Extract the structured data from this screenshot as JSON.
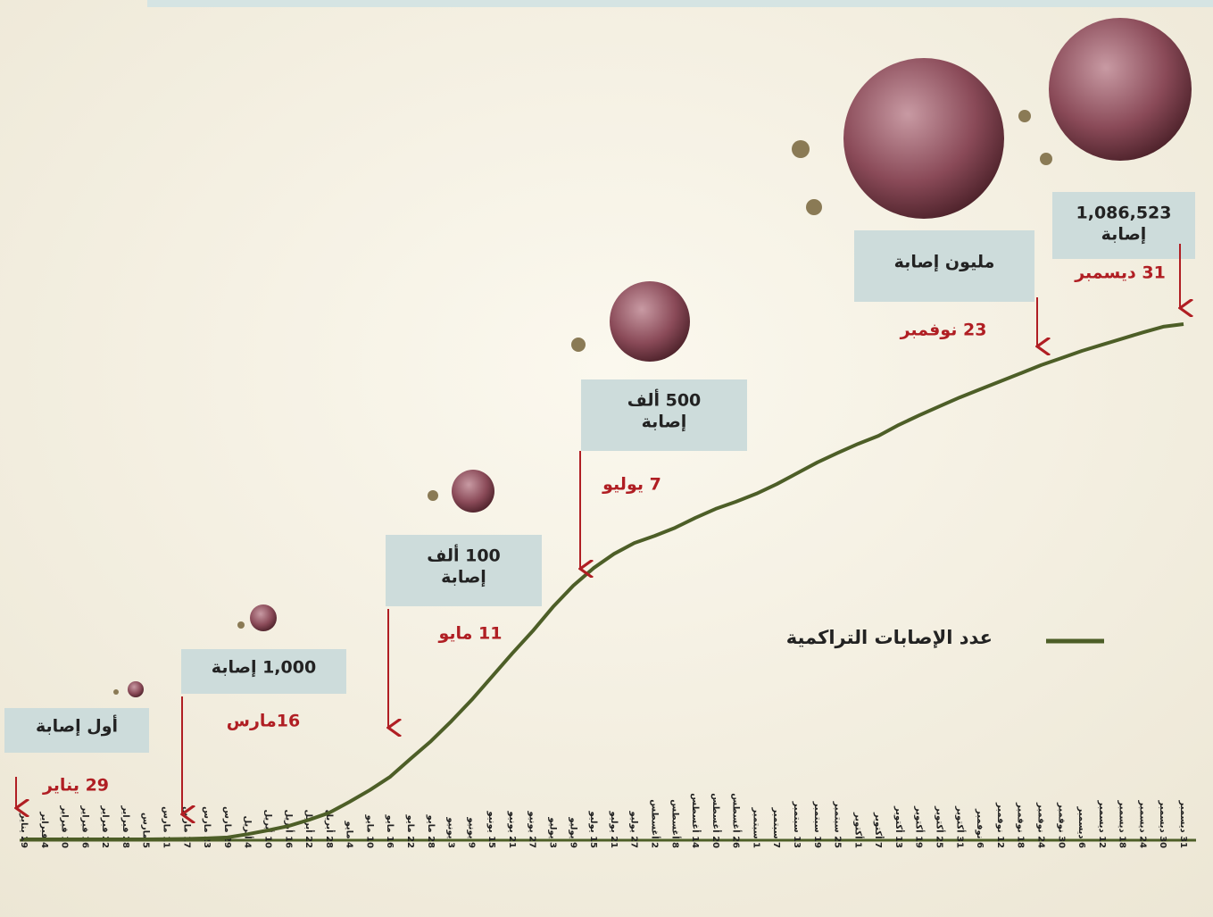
{
  "chart_data": {
    "type": "line",
    "categories": [
      "29 يناير",
      "4 فبراير",
      "10 فبراير",
      "16 فبراير",
      "22 فبراير",
      "28 فبراير",
      "5 مارس",
      "11 مارس",
      "17 مارس",
      "23 مارس",
      "29 مارس",
      "4 أبريل",
      "10 أبريل",
      "16 أبريل",
      "22 أبريل",
      "28 أبريل",
      "4 مايو",
      "10 مايو",
      "16 مايو",
      "22 مايو",
      "28 مايو",
      "3 يونيو",
      "9 يونيو",
      "15 يونيو",
      "21 يونيو",
      "27 يونيو",
      "3 يوليو",
      "9 يوليو",
      "15 يوليو",
      "21 يوليو",
      "27 يوليو",
      "2 أغسطس",
      "8 أغسطس",
      "14 أغسطس",
      "20 أغسطس",
      "26 أغسطس",
      "1 سبتمبر",
      "7 سبتمبر",
      "13 سبتمبر",
      "19 سبتمبر",
      "25 سبتمبر",
      "1 أكتوبر",
      "7 أكتوبر",
      "13 أكتوبر",
      "19 أكتوبر",
      "25 أكتوبر",
      "31 أكتوبر",
      "6 نوفمبر",
      "12 نوفمبر",
      "18 نوفمبر",
      "24 نوفمبر",
      "30 نوفمبر",
      "6 ديسمبر",
      "12 ديسمبر",
      "18 ديسمبر",
      "24 ديسمبر",
      "30 ديسمبر",
      "31 ديسمبر"
    ],
    "series": [
      {
        "name": "عدد الإصابات التراكمية",
        "color": "#4d5e27",
        "values": [
          0,
          0,
          0,
          0,
          0,
          0,
          0,
          300,
          1000,
          2000,
          4000,
          11000,
          19000,
          28000,
          41000,
          56000,
          79000,
          104000,
          132000,
          170000,
          207000,
          249000,
          294000,
          343000,
          392000,
          439000,
          490000,
          535000,
          572000,
          602000,
          625000,
          640000,
          657000,
          678000,
          697000,
          712000,
          729000,
          749000,
          772000,
          795000,
          815000,
          834000,
          851000,
          874000,
          894000,
          913000,
          932000,
          949000,
          966000,
          983000,
          1000000,
          1015000,
          1030000,
          1043000,
          1056000,
          1069000,
          1081000,
          1086523
        ]
      }
    ],
    "annotations": [
      {
        "lines": [
          "أول إصابة"
        ],
        "date": "29 يناير"
      },
      {
        "lines": [
          "1,000 إصابة"
        ],
        "date": "16مارس"
      },
      {
        "lines": [
          "100 ألف",
          "إصابة"
        ],
        "date": "11 مايو"
      },
      {
        "lines": [
          "500 ألف",
          "إصابة"
        ],
        "date": "7 يوليو"
      },
      {
        "lines": [
          "مليون إصابة"
        ],
        "date": "23 نوفمبر"
      },
      {
        "lines": [
          "1,086,523",
          "إصابة"
        ],
        "date": "31 ديسمبر"
      }
    ]
  }
}
